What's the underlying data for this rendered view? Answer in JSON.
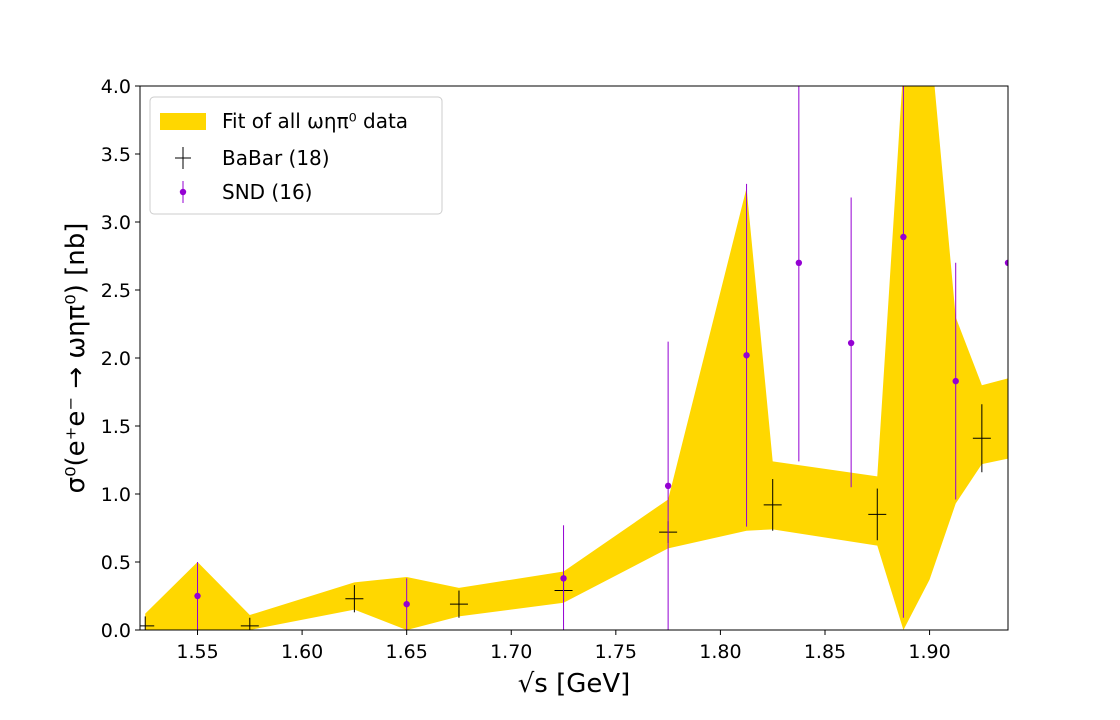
{
  "chart_data": {
    "type": "scatter",
    "xlabel": "√s [GeV]",
    "ylabel": "σ⁰(e⁺e⁻ → ωηπ⁰) [nb]",
    "xlim": [
      1.5225,
      1.9375
    ],
    "ylim": [
      0,
      4.0
    ],
    "xticks": [
      "1.55",
      "1.60",
      "1.65",
      "1.70",
      "1.75",
      "1.80",
      "1.85",
      "1.90"
    ],
    "yticks": [
      "0.0",
      "0.5",
      "1.0",
      "1.5",
      "2.0",
      "2.5",
      "3.0",
      "3.5",
      "4.0"
    ],
    "grid": false,
    "legend_position": "top-left",
    "band": {
      "name": "Fit of all ωηπ⁰ data",
      "color": "#ffd700",
      "x": [
        1.525,
        1.55,
        1.575,
        1.625,
        1.65,
        1.675,
        1.725,
        1.775,
        1.8125,
        1.825,
        1.875,
        1.8875,
        1.9,
        1.9125,
        1.925,
        1.9375
      ],
      "lower": [
        0.0,
        0.0,
        0.0,
        0.15,
        0.0,
        0.1,
        0.2,
        0.6,
        0.73,
        0.74,
        0.62,
        0.0,
        0.37,
        0.93,
        1.22,
        1.26
      ],
      "upper": [
        0.12,
        0.5,
        0.11,
        0.35,
        0.39,
        0.31,
        0.43,
        0.96,
        3.25,
        1.24,
        1.13,
        4.15,
        4.4,
        2.3,
        1.8,
        1.85
      ]
    },
    "series": [
      {
        "name": "BaBar (18)",
        "color": "#000000",
        "marker": "plus",
        "x": [
          1.525,
          1.575,
          1.625,
          1.675,
          1.725,
          1.775,
          1.825,
          1.875,
          1.925
        ],
        "y": [
          0.03,
          0.03,
          0.23,
          0.19,
          0.29,
          0.72,
          0.92,
          0.85,
          1.41
        ],
        "yerr": [
          0.07,
          0.06,
          0.1,
          0.1,
          0.08,
          0.08,
          0.19,
          0.19,
          0.25
        ]
      },
      {
        "name": "SND (16)",
        "color": "#9400d3",
        "marker": "circle",
        "x": [
          1.55,
          1.65,
          1.725,
          1.775,
          1.8125,
          1.8375,
          1.8625,
          1.8875,
          1.9125,
          1.9375
        ],
        "y": [
          0.25,
          0.19,
          0.38,
          1.06,
          2.02,
          2.7,
          2.11,
          2.89,
          1.83,
          2.7
        ],
        "yerr_low": [
          0.25,
          0.19,
          0.38,
          1.06,
          1.26,
          1.46,
          1.06,
          2.8,
          0.87,
          0.0
        ],
        "yerr_high": [
          0.25,
          0.19,
          0.39,
          1.06,
          1.26,
          1.3,
          1.07,
          1.11,
          0.87,
          0.0
        ]
      }
    ]
  }
}
